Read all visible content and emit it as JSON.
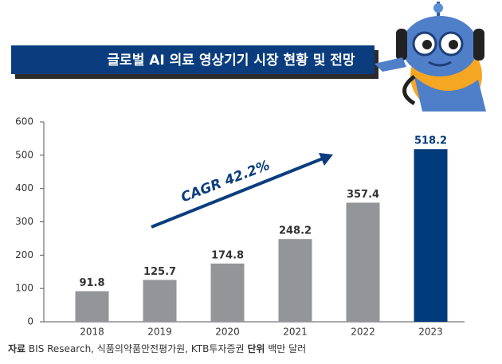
{
  "chart_data": {
    "type": "bar",
    "title": "글로벌 AI 의료 영상기기 시장 현황 및 전망",
    "categories": [
      "2018",
      "2019",
      "2020",
      "2021",
      "2022",
      "2023"
    ],
    "values": [
      91.8,
      125.7,
      174.8,
      248.2,
      357.4,
      518.2
    ],
    "colors": [
      "#939598",
      "#939598",
      "#939598",
      "#939598",
      "#939598",
      "#003b7b"
    ],
    "ylim": [
      0,
      600
    ],
    "yticks": [
      0,
      100,
      200,
      300,
      400,
      500,
      600
    ],
    "annotation": "CAGR 42.2%",
    "source_label": "자료",
    "source": "BIS Research, 식품의약품안전평가원, KTB투자증권",
    "unit_label": "단위",
    "unit": "백만 달러"
  }
}
